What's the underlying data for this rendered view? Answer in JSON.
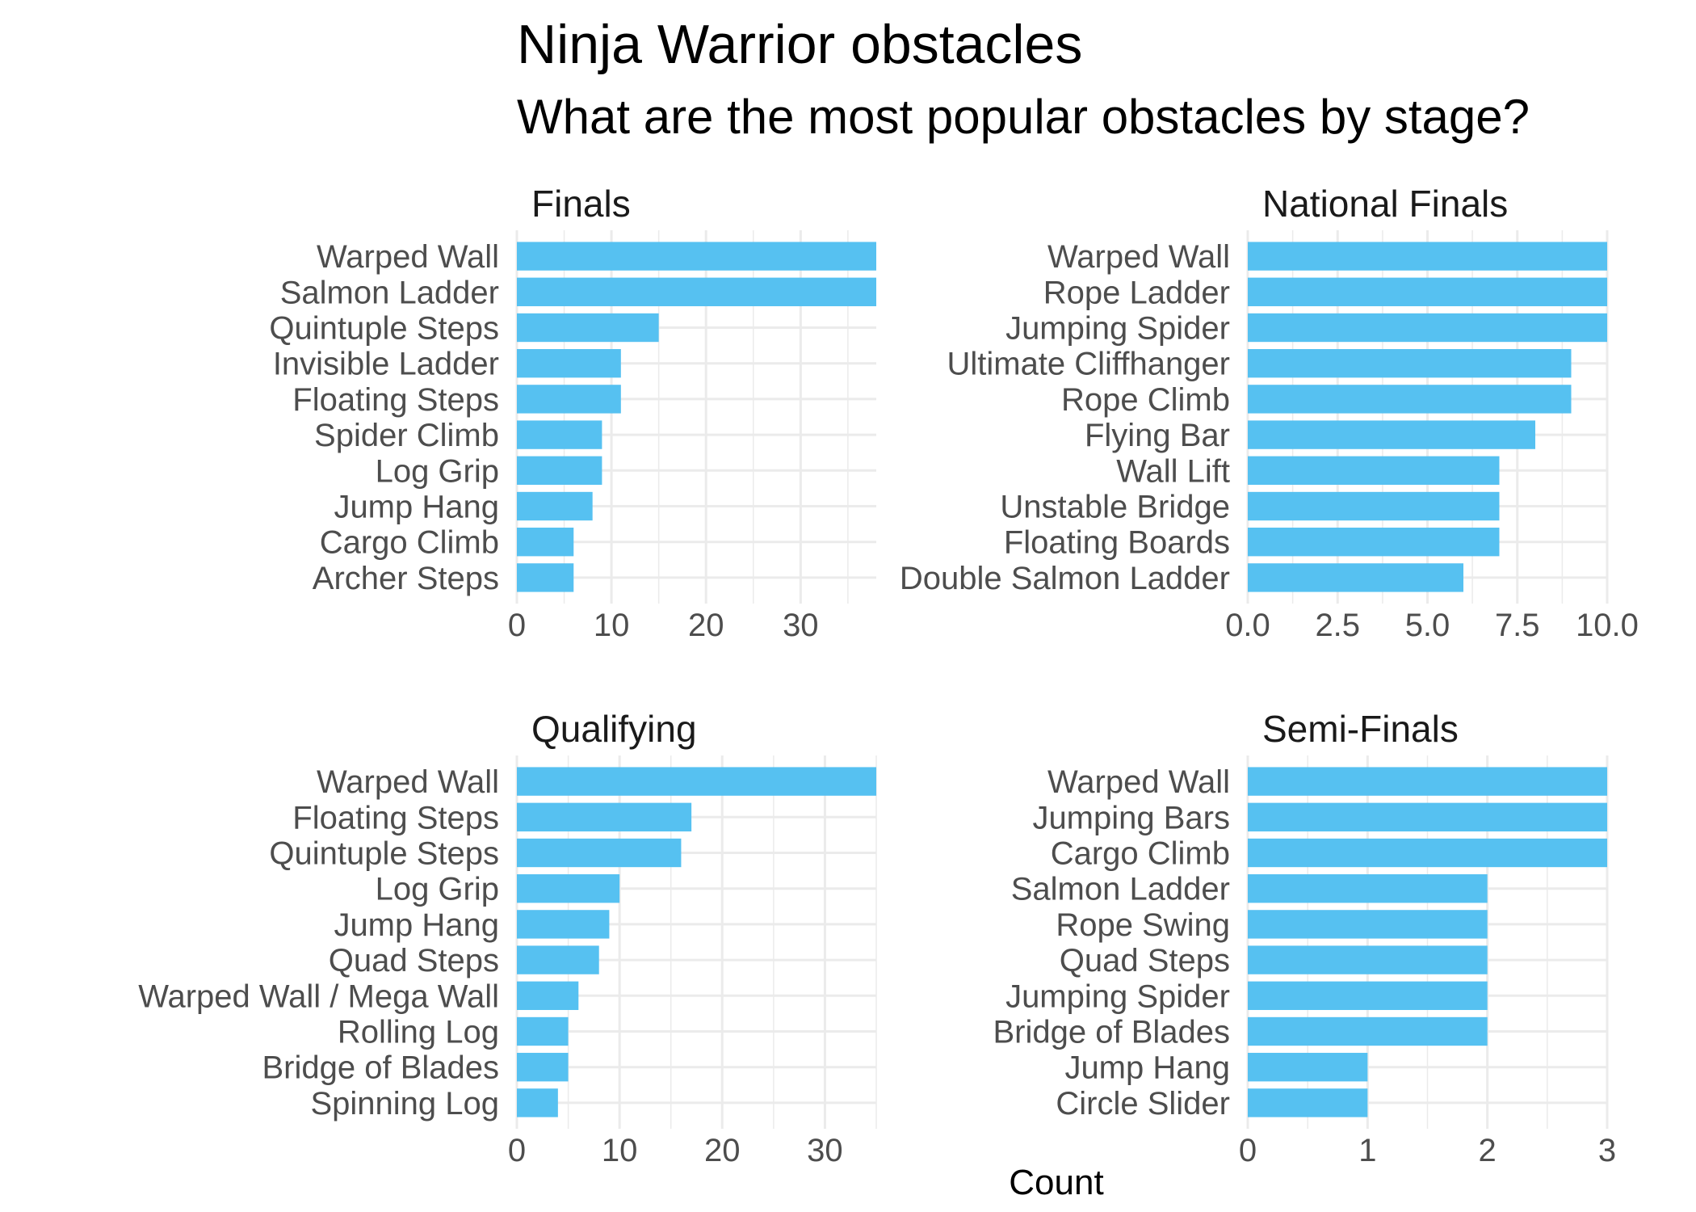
{
  "chart_data": {
    "type": "bar",
    "orientation": "horizontal",
    "title": "Ninja Warrior obstacles",
    "subtitle": "What are the most popular obstacles by stage?",
    "xlabel": "Count",
    "ylabel": "",
    "bar_color": "#56C1F1",
    "grid": true,
    "facets": [
      {
        "name": "Finals",
        "categories": [
          "Warped Wall",
          "Salmon Ladder",
          "Quintuple Steps",
          "Invisible Ladder",
          "Floating Steps",
          "Spider Climb",
          "Log Grip",
          "Jump Hang",
          "Cargo Climb",
          "Archer Steps"
        ],
        "values": [
          38,
          38,
          15,
          11,
          11,
          9,
          9,
          8,
          6,
          6
        ],
        "xlim": [
          0,
          38
        ],
        "xticks": [
          "0",
          "10",
          "20",
          "30"
        ]
      },
      {
        "name": "National Finals",
        "categories": [
          "Warped Wall",
          "Rope Ladder",
          "Jumping Spider",
          "Ultimate Cliffhanger",
          "Rope Climb",
          "Flying Bar",
          "Wall Lift",
          "Unstable Bridge",
          "Floating Boards",
          "Double Salmon Ladder"
        ],
        "values": [
          10,
          10,
          10,
          9,
          9,
          8,
          7,
          7,
          7,
          6
        ],
        "xlim": [
          0,
          10
        ],
        "xticks": [
          "0.0",
          "2.5",
          "5.0",
          "7.5",
          "10.0"
        ]
      },
      {
        "name": "Qualifying",
        "categories": [
          "Warped Wall",
          "Floating Steps",
          "Quintuple Steps",
          "Log Grip",
          "Jump Hang",
          "Quad Steps",
          "Warped Wall / Mega Wall",
          "Rolling Log",
          "Bridge of Blades",
          "Spinning Log"
        ],
        "values": [
          35,
          17,
          16,
          10,
          9,
          8,
          6,
          5,
          5,
          4
        ],
        "xlim": [
          0,
          35
        ],
        "xticks": [
          "0",
          "10",
          "20",
          "30"
        ]
      },
      {
        "name": "Semi-Finals",
        "categories": [
          "Warped Wall",
          "Jumping Bars",
          "Cargo Climb",
          "Salmon Ladder",
          "Rope Swing",
          "Quad Steps",
          "Jumping Spider",
          "Bridge of Blades",
          "Jump Hang",
          "Circle Slider"
        ],
        "values": [
          3,
          3,
          3,
          2,
          2,
          2,
          2,
          2,
          1,
          1
        ],
        "xlim": [
          0,
          3
        ],
        "xticks": [
          "0",
          "1",
          "2",
          "3"
        ]
      }
    ]
  }
}
